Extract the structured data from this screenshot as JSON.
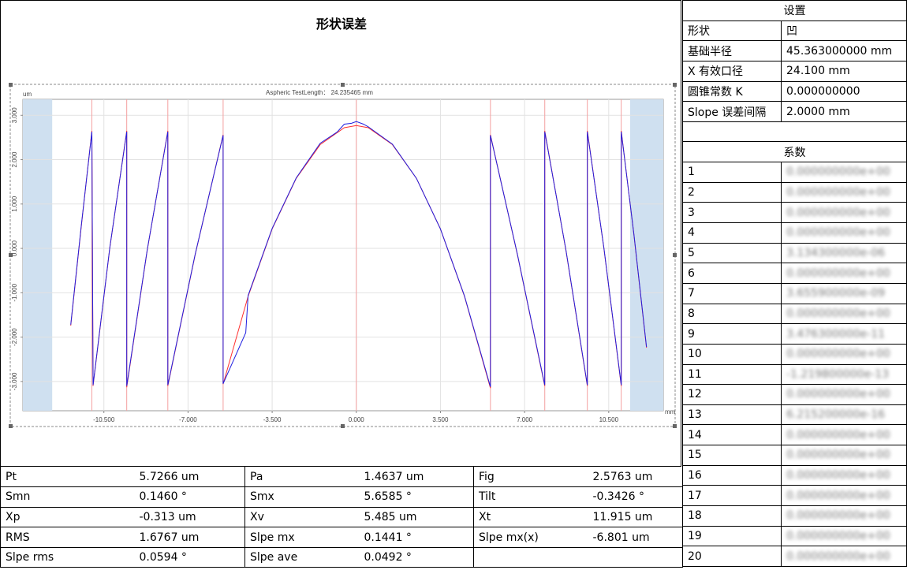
{
  "header": {
    "title": "形状误差"
  },
  "chart": {
    "title": "Aspheric TestLength： 24.235465 mm",
    "y_unit": "um",
    "x_unit": "mm",
    "xlim": [
      -13.87,
      12.77
    ],
    "ylim": [
      -3.66,
      3.36
    ],
    "xticks": [
      {
        "value": -10.5,
        "label": "-10.500"
      },
      {
        "value": -7,
        "label": "-7.000"
      },
      {
        "value": -3.5,
        "label": "-3.500"
      },
      {
        "value": 0,
        "label": "0.000"
      },
      {
        "value": 3.5,
        "label": "3.500"
      },
      {
        "value": 7,
        "label": "7.000"
      },
      {
        "value": 10.5,
        "label": "10.500"
      }
    ],
    "yticks": [
      {
        "value": 3,
        "label": "3.000"
      },
      {
        "value": 2,
        "label": "2.000"
      },
      {
        "value": 1,
        "label": "1.000"
      },
      {
        "value": 0,
        "label": "0.000"
      },
      {
        "value": -1,
        "label": "-1.000"
      },
      {
        "value": -2,
        "label": "-2.000"
      },
      {
        "value": -3,
        "label": "-3.000"
      }
    ],
    "grid": true,
    "shaded": [
      [
        -13.87,
        -12.65
      ],
      [
        11.39,
        12.77
      ]
    ],
    "shade_color": "#cfe0f0",
    "zone_lines": [
      -11.0,
      -9.55,
      -7.84,
      -5.54,
      0,
      5.58,
      7.84,
      9.61,
      11.02
    ],
    "zone_line_color": "#f4a0a0",
    "series": [
      {
        "color": "#ff3030",
        "x": [
          -11.88,
          -11.44,
          -11.0,
          -10.95,
          -10.25,
          -9.55,
          -9.55,
          -8.7,
          -7.84,
          -7.84,
          -6.7,
          -5.54,
          -5.54,
          -4.5,
          -3.5,
          -2.5,
          -1.5,
          -0.5,
          0,
          0.5,
          1.5,
          2.5,
          3.5,
          4.5,
          5.58,
          5.58,
          6.7,
          7.84,
          7.84,
          8.72,
          9.61,
          9.61,
          10.3,
          11.02,
          11.02,
          11.55,
          12.07
        ],
        "y": [
          -1.74,
          0.5,
          2.65,
          -3.1,
          0.02,
          2.65,
          -3.13,
          -0.05,
          2.65,
          -3.1,
          -0.14,
          2.56,
          -3.06,
          -1.08,
          0.44,
          1.58,
          2.34,
          2.72,
          2.77,
          2.72,
          2.34,
          1.58,
          0.44,
          -1.08,
          -3.15,
          2.56,
          -0.14,
          -3.1,
          2.65,
          -0.05,
          -3.1,
          2.65,
          0.0,
          -3.1,
          2.65,
          0.3,
          -2.24
        ]
      },
      {
        "color": "#2020e0",
        "x": [
          -11.88,
          -11.44,
          -11.0,
          -10.95,
          -10.25,
          -9.55,
          -9.55,
          -8.7,
          -7.84,
          -7.84,
          -6.7,
          -5.54,
          -5.54,
          -4.6,
          -4.5,
          -3.5,
          -2.5,
          -1.5,
          -0.8,
          -0.5,
          -0.2,
          0,
          0.3,
          0.5,
          1.5,
          2.5,
          3.5,
          4.5,
          5.58,
          5.58,
          6.7,
          7.84,
          7.84,
          8.72,
          9.61,
          9.61,
          10.3,
          11.02,
          11.02,
          11.55,
          12.07
        ],
        "y": [
          -1.72,
          0.52,
          2.63,
          -3.08,
          0.03,
          2.63,
          -3.1,
          -0.04,
          2.63,
          -3.08,
          -0.13,
          2.55,
          -3.05,
          -1.9,
          -1.06,
          0.45,
          1.59,
          2.37,
          2.62,
          2.8,
          2.82,
          2.86,
          2.8,
          2.74,
          2.35,
          1.58,
          0.44,
          -1.07,
          -3.12,
          2.55,
          -0.13,
          -3.08,
          2.63,
          -0.04,
          -3.08,
          2.63,
          0.01,
          -3.08,
          2.63,
          0.31,
          -2.22
        ]
      }
    ]
  },
  "stats": {
    "rows": [
      [
        "Pt",
        "5.7266 um",
        "Pa",
        "1.4637 um",
        "Fig",
        "2.5763 um"
      ],
      [
        "Smn",
        "0.1460 °",
        "Smx",
        "5.6585 °",
        "Tilt",
        "-0.3426 °"
      ],
      [
        "Xp",
        "-0.313 um",
        "Xv",
        "5.485 um",
        "Xt",
        "11.915 um"
      ],
      [
        "RMS",
        "1.6767 um",
        "Slpe mx",
        "0.1441 °",
        "Slpe mx(x)",
        "-6.801 um"
      ],
      [
        "Slpe rms",
        "0.0594 °",
        "Slpe ave",
        "0.0492 °"
      ]
    ]
  },
  "settings": {
    "title": "设置",
    "rows": [
      [
        "形状",
        "凹"
      ],
      [
        "基础半径",
        "45.363000000 mm"
      ],
      [
        "X 有效口径",
        "24.100 mm"
      ],
      [
        "圆锥常数 K",
        "0.000000000"
      ],
      [
        "Slope 误差间隔",
        "2.0000 mm"
      ]
    ]
  },
  "coefficients": {
    "title": "系数",
    "rows": [
      [
        "1",
        "0.000000000e+00"
      ],
      [
        "2",
        "0.000000000e+00"
      ],
      [
        "3",
        "0.000000000e+00"
      ],
      [
        "4",
        "0.000000000e+00"
      ],
      [
        "5",
        "3.134300000e-06"
      ],
      [
        "6",
        "0.000000000e+00"
      ],
      [
        "7",
        "3.655900000e-09"
      ],
      [
        "8",
        "0.000000000e+00"
      ],
      [
        "9",
        "3.476300000e-11"
      ],
      [
        "10",
        "0.000000000e+00"
      ],
      [
        "11",
        "-1.219800000e-13"
      ],
      [
        "12",
        "0.000000000e+00"
      ],
      [
        "13",
        "6.215200000e-16"
      ],
      [
        "14",
        "0.000000000e+00"
      ],
      [
        "15",
        "0.000000000e+00"
      ],
      [
        "16",
        "0.000000000e+00"
      ],
      [
        "17",
        "0.000000000e+00"
      ],
      [
        "18",
        "0.000000000e+00"
      ],
      [
        "19",
        "0.000000000e+00"
      ],
      [
        "20",
        "0.000000000e+00"
      ]
    ]
  }
}
